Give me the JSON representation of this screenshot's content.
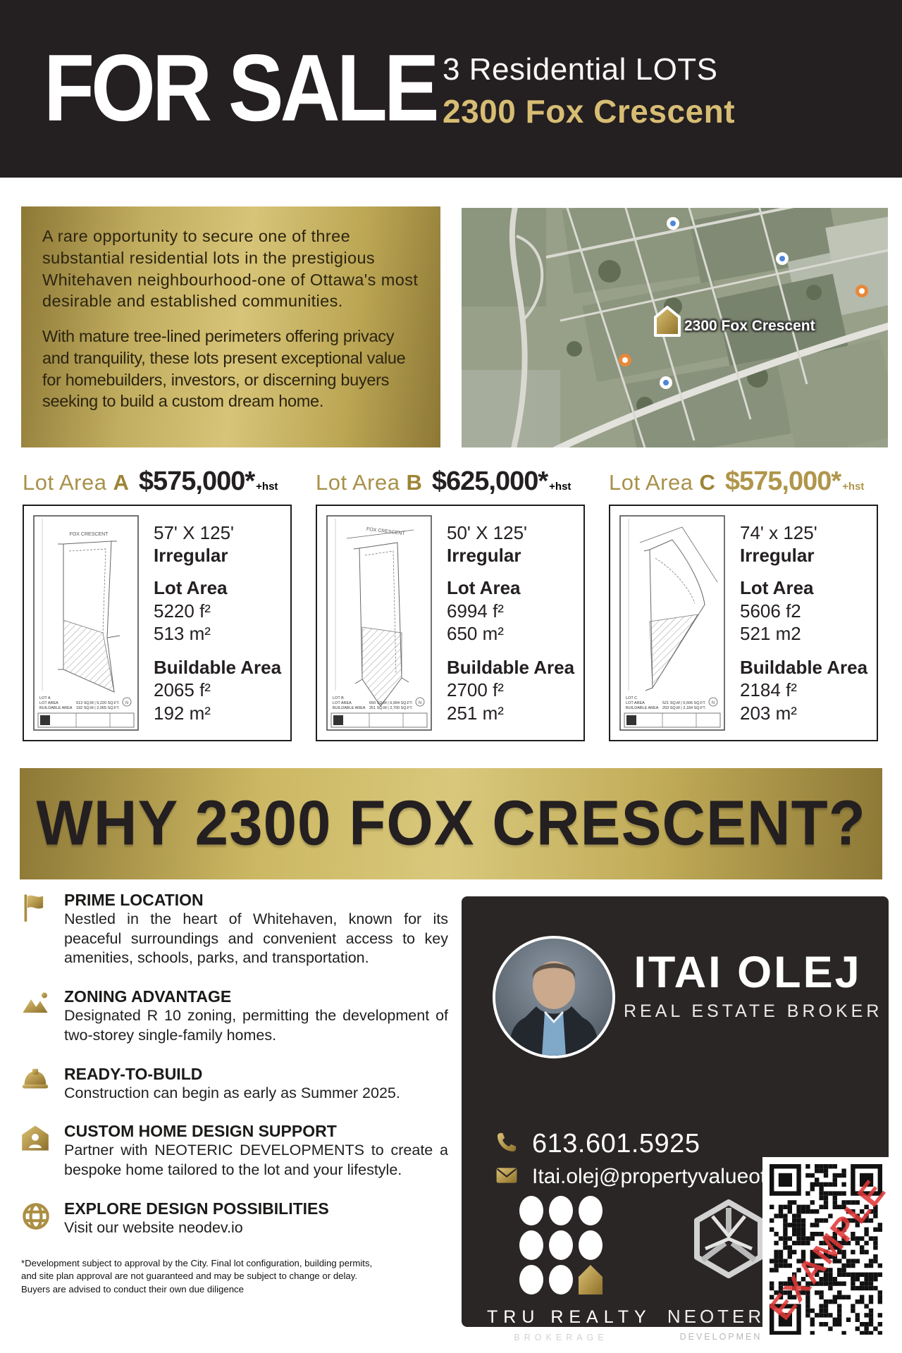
{
  "header": {
    "title": "FOR SALE",
    "subtitle_line1": "3 Residential LOTS",
    "subtitle_line2": "2300 Fox Crescent"
  },
  "intro": {
    "paragraph1": "A rare opportunity to secure one of three substantial residential lots in the prestigious Whitehaven neighbourhood-one of Ottawa's most desirable and established communities.",
    "paragraph2": "With mature tree-lined perimeters offering privacy and tranquility, these lots present exceptional value for homebuilders, investors, or discerning buyers seeking to build a custom dream home.",
    "map_label": "2300 Fox Crescent"
  },
  "lots": [
    {
      "prefix": "Lot Area",
      "letter": "A",
      "price": "$575,000*",
      "hst": "+hst",
      "dims": "57' X 125'",
      "shape": "Irregular",
      "lot_area_label": "Lot Area",
      "lot_area_ft": "5220 f²",
      "lot_area_m": "513 m²",
      "build_label": "Buildable Area",
      "build_ft": "2065 f²",
      "build_m": "192 m²"
    },
    {
      "prefix": "Lot Area",
      "letter": "B",
      "price": "$625,000*",
      "hst": "+hst",
      "dims": "50' X 125'",
      "shape": "Irregular",
      "lot_area_label": "Lot Area",
      "lot_area_ft": "6994 f²",
      "lot_area_m": "650 m²",
      "build_label": "Buildable Area",
      "build_ft": "2700 f²",
      "build_m": "251 m²"
    },
    {
      "prefix": "Lot Area",
      "letter": "C",
      "price": "$575,000*",
      "hst": "+hst",
      "dims": "74' x 125'",
      "shape": "Irregular",
      "lot_area_label": "Lot Area",
      "lot_area_ft": "5606 f2",
      "lot_area_m": "521 m2",
      "build_label": "Buildable Area",
      "build_ft": "2184 f²",
      "build_m": "203 m²"
    }
  ],
  "banner": {
    "text": "WHY 2300 FOX CRESCENT?"
  },
  "features": [
    {
      "icon": "flag-icon",
      "title": "PRIME LOCATION",
      "body": "Nestled in the heart of Whitehaven, known for its peaceful surroundings and convenient access to key amenities, schools, parks, and transportation."
    },
    {
      "icon": "mountains-icon",
      "title": "ZONING ADVANTAGE",
      "body": "Designated R 10 zoning, permitting the development of two-storey single-family homes."
    },
    {
      "icon": "hard-hat-icon",
      "title": "READY-TO-BUILD",
      "body": "Construction can begin as early as Summer 2025."
    },
    {
      "icon": "house-user-icon",
      "title": "CUSTOM HOME DESIGN SUPPORT",
      "body": "Partner with NEOTERIC DEVELOPMENTS to create a bespoke home tailored to the lot and your lifestyle."
    },
    {
      "icon": "globe-icon",
      "title": "EXPLORE DESIGN POSSIBILITIES",
      "body": "Visit our website neodev.io"
    }
  ],
  "broker": {
    "name": "ITAI OLEJ",
    "role": "REAL ESTATE BROKER",
    "phone": "613.601.5925",
    "email": "Itai.olej@propertyvalueottawa.com"
  },
  "logos": {
    "tru_realty": {
      "name": "TRU REALTY",
      "tagline": "BROKERAGE"
    },
    "neoteric": {
      "name": "NEOTERIC",
      "tagline": "DEVELOPMENTS"
    }
  },
  "qr": {
    "watermark": "EXAMPLE"
  },
  "disclaimer": "*Development subject to approval by the City. Final lot configuration, building permits, and site plan approval are not guaranteed and may be subject to change or delay. Buyers are advised to conduct their own due diligence",
  "colors": {
    "gold": "#b2954a",
    "gold_light": "#d7c478",
    "gold_dark": "#8d7836",
    "header_black": "#241f20",
    "card_black": "#2b2626",
    "price_black": "#241f20",
    "price_gold": "#b0964b",
    "watermark_red": "#e03838"
  }
}
